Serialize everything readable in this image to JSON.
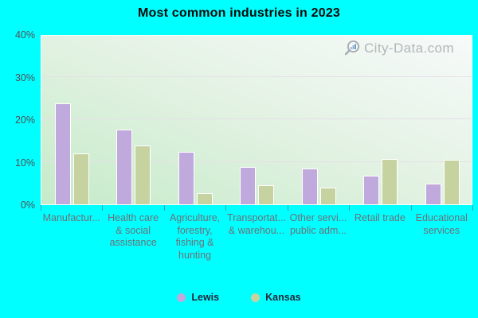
{
  "title": "Most common industries in 2023",
  "watermark": {
    "text": "City-Data.com"
  },
  "colors": {
    "page_bg": "#00ffff",
    "title_color": "#0a0a0a",
    "plot_bg_top": "#f7fafa",
    "plot_bg_mid": "#e3f2e3",
    "plot_bg_bottom": "#c5ebc9",
    "gridline": "#e7dfe9",
    "axis_text": "#4f4f54",
    "category_text": "#6e7078",
    "tick": "#3d8c92",
    "bar_border": "#ffffff",
    "legend_text": "#26263a",
    "watermark_text": "#b2b6ba"
  },
  "chart_data": {
    "type": "bar",
    "title": "Most common industries in 2023",
    "categories": [
      "Manufactur...",
      "Health care & social assistance",
      "Agriculture, forestry, fishing & hunting",
      "Transportat... & warehou...",
      "Other servi... public adm...",
      "Retail trade",
      "Educational services"
    ],
    "category_label_lines": [
      [
        "Manufactur..."
      ],
      [
        "Health care",
        "& social",
        "assistance"
      ],
      [
        "Agriculture,",
        "forestry,",
        "fishing &",
        "hunting"
      ],
      [
        "Transportat...",
        "& warehou..."
      ],
      [
        "Other servi...",
        "public adm..."
      ],
      [
        "Retail trade"
      ],
      [
        "Educational",
        "services"
      ]
    ],
    "series": [
      {
        "name": "Lewis",
        "color": "#c0a9dc",
        "values": [
          23.7,
          17.5,
          12.4,
          8.7,
          8.4,
          6.7,
          4.9
        ]
      },
      {
        "name": "Kansas",
        "color": "#c6d3a0",
        "values": [
          11.9,
          13.9,
          2.7,
          4.5,
          3.9,
          10.6,
          10.5
        ]
      }
    ],
    "xlabel": "",
    "ylabel": "",
    "ylim": [
      0,
      40
    ],
    "ytick_labels": [
      "0%",
      "10%",
      "20%",
      "30%",
      "40%"
    ],
    "grid": true,
    "legend_position": "bottom"
  }
}
